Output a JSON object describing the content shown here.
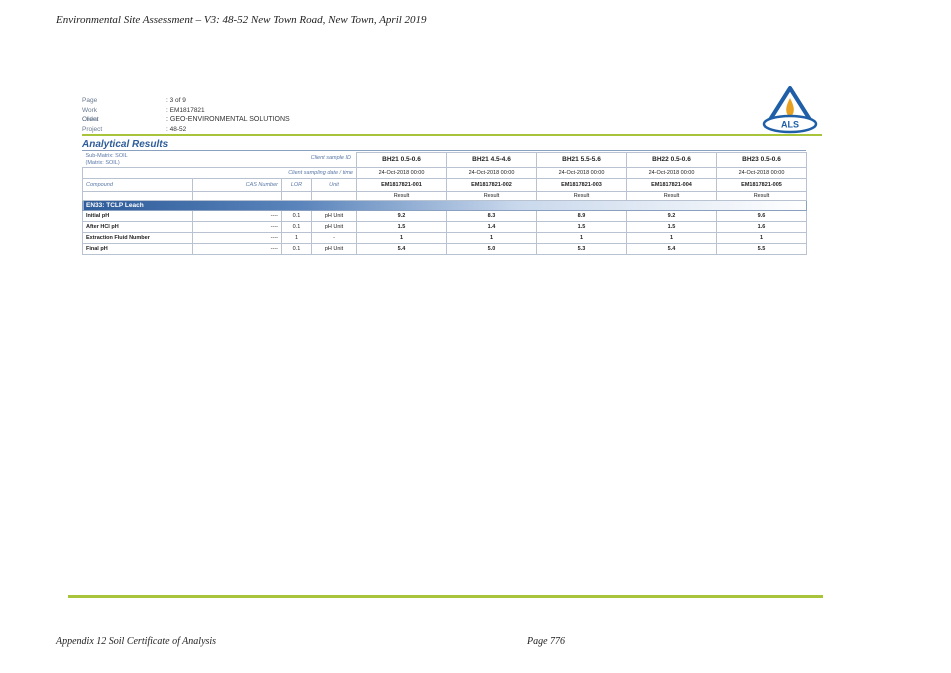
{
  "header": {
    "text": "Environmental Site Assessment – V3: 48-52 New Town Road, New Town, April 2019"
  },
  "meta": {
    "rows": [
      {
        "label": "Page",
        "value": ": 3 of 9"
      },
      {
        "label": "Work Order",
        "value": ": EM1817821"
      },
      {
        "label": "Client",
        "value": ": GEO-ENVIRONMENTAL SOLUTIONS"
      },
      {
        "label": "Project",
        "value": ": 48-52"
      }
    ]
  },
  "logo": {
    "text": "ALS",
    "colors": {
      "blue": "#1f5fa8",
      "orange": "#e8a020",
      "green": "#a8c43a"
    }
  },
  "title": "Analytical Results",
  "table": {
    "sub_matrix": "Sub-Matrix: SOIL",
    "matrix": "(Matrix: SOIL)",
    "client_sample_id_label": "Client sample ID",
    "sampling_label": "Client sampling date / time",
    "col_compound": "Compound",
    "col_cas": "CAS Number",
    "col_lor": "LOR",
    "col_unit": "Unit",
    "samples": [
      {
        "id": "BH21 0.5-0.6",
        "date": "24-Oct-2018 00:00",
        "lab": "EM1817821-001",
        "result": "Result"
      },
      {
        "id": "BH21 4.5-4.6",
        "date": "24-Oct-2018 00:00",
        "lab": "EM1817821-002",
        "result": "Result"
      },
      {
        "id": "BH21 5.5-5.6",
        "date": "24-Oct-2018 00:00",
        "lab": "EM1817821-003",
        "result": "Result"
      },
      {
        "id": "BH22 0.5-0.6",
        "date": "24-Oct-2018 00:00",
        "lab": "EM1817821-004",
        "result": "Result"
      },
      {
        "id": "BH23 0.5-0.6",
        "date": "24-Oct-2018 00:00",
        "lab": "EM1817821-005",
        "result": "Result"
      }
    ],
    "section": "EN33: TCLP Leach",
    "rows": [
      {
        "compound": "Initial pH",
        "cas": "----",
        "lor": "0.1",
        "unit": "pH Unit",
        "values": [
          "9.2",
          "8.3",
          "8.9",
          "9.2",
          "9.6"
        ]
      },
      {
        "compound": "After HCl pH",
        "cas": "----",
        "lor": "0.1",
        "unit": "pH Unit",
        "values": [
          "1.5",
          "1.4",
          "1.5",
          "1.5",
          "1.6"
        ]
      },
      {
        "compound": "Extraction Fluid Number",
        "cas": "----",
        "lor": "1",
        "unit": "-",
        "values": [
          "1",
          "1",
          "1",
          "1",
          "1"
        ]
      },
      {
        "compound": "Final pH",
        "cas": "----",
        "lor": "0.1",
        "unit": "pH Unit",
        "values": [
          "5.4",
          "5.0",
          "5.3",
          "5.4",
          "5.5"
        ]
      }
    ]
  },
  "footer": {
    "left": "Appendix 12 Soil Certificate of Analysis",
    "right": "Page 776"
  }
}
